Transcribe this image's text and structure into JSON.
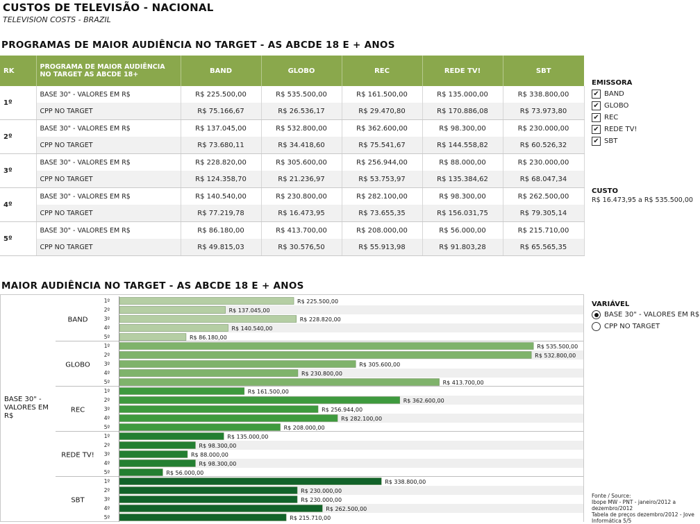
{
  "header": {
    "title": "CUSTOS DE TELEVISÃO - NACIONAL",
    "subtitle": "TELEVISION COSTS - BRAZIL"
  },
  "table_section": {
    "title": "PROGRAMAS DE MAIOR AUDIÊNCIA NO TARGET - AS ABCDE 18 E + ANOS",
    "columns": [
      "RK",
      "PROGRAMA DE MAIOR AUDIÊNCIA NO TARGET AS ABCDE 18+",
      "BAND",
      "GLOBO",
      "REC",
      "REDE TV!",
      "SBT"
    ],
    "rows": [
      {
        "rank": "1º",
        "base_label": "BASE 30\" - VALORES EM R$",
        "base": [
          "R$ 225.500,00",
          "R$ 535.500,00",
          "R$ 161.500,00",
          "R$ 135.000,00",
          "R$ 338.800,00"
        ],
        "cpp_label": "CPP NO TARGET",
        "cpp": [
          "R$ 75.166,67",
          "R$ 26.536,17",
          "R$ 29.470,80",
          "R$ 170.886,08",
          "R$ 73.973,80"
        ]
      },
      {
        "rank": "2º",
        "base_label": "BASE 30\" - VALORES EM R$",
        "base": [
          "R$ 137.045,00",
          "R$ 532.800,00",
          "R$ 362.600,00",
          "R$ 98.300,00",
          "R$ 230.000,00"
        ],
        "cpp_label": "CPP NO TARGET",
        "cpp": [
          "R$ 73.680,11",
          "R$ 34.418,60",
          "R$ 75.541,67",
          "R$ 144.558,82",
          "R$ 60.526,32"
        ]
      },
      {
        "rank": "3º",
        "base_label": "BASE 30\" - VALORES EM R$",
        "base": [
          "R$ 228.820,00",
          "R$ 305.600,00",
          "R$ 256.944,00",
          "R$ 88.000,00",
          "R$ 230.000,00"
        ],
        "cpp_label": "CPP NO TARGET",
        "cpp": [
          "R$ 124.358,70",
          "R$ 21.236,97",
          "R$ 53.753,97",
          "R$ 135.384,62",
          "R$ 68.047,34"
        ]
      },
      {
        "rank": "4º",
        "base_label": "BASE 30\" - VALORES EM R$",
        "base": [
          "R$ 140.540,00",
          "R$ 230.800,00",
          "R$ 282.100,00",
          "R$ 98.300,00",
          "R$ 262.500,00"
        ],
        "cpp_label": "CPP NO TARGET",
        "cpp": [
          "R$ 77.219,78",
          "R$ 16.473,95",
          "R$ 73.655,35",
          "R$ 156.031,75",
          "R$ 79.305,14"
        ]
      },
      {
        "rank": "5º",
        "base_label": "BASE 30\" - VALORES EM R$",
        "base": [
          "R$ 86.180,00",
          "R$ 413.700,00",
          "R$ 208.000,00",
          "R$ 56.000,00",
          "R$ 215.710,00"
        ],
        "cpp_label": "CPP NO TARGET",
        "cpp": [
          "R$ 49.815,03",
          "R$ 30.576,50",
          "R$ 55.913,98",
          "R$ 91.803,28",
          "R$ 65.565,35"
        ]
      }
    ]
  },
  "filters": {
    "emissora_label": "EMISSORA",
    "emissoras": [
      {
        "label": "BAND",
        "checked": true
      },
      {
        "label": "GLOBO",
        "checked": true
      },
      {
        "label": "REC",
        "checked": true
      },
      {
        "label": "REDE TV!",
        "checked": true
      },
      {
        "label": "SBT",
        "checked": true
      }
    ],
    "checkmark": "✔",
    "custo_label": "CUSTO",
    "custo_range": "R$ 16.473,95 a R$ 535.500,00",
    "variavel_label": "VARIÁVEL",
    "variaveis": [
      {
        "label": "BASE 30\" - VALORES EM R$",
        "selected": true
      },
      {
        "label": "CPP NO TARGET",
        "selected": false
      }
    ]
  },
  "chart_section": {
    "title": "MAIOR AUDIÊNCIA NO TARGET - AS ABCDE 18 E + ANOS",
    "measure_label": "BASE 30\" - VALORES EM R$"
  },
  "chart_data": {
    "type": "bar",
    "orientation": "horizontal",
    "title": "MAIOR AUDIÊNCIA NO TARGET - AS ABCDE 18 E + ANOS",
    "ylabel": "BASE 30\" - VALORES EM R$",
    "categories": [
      "1º",
      "2º",
      "3º",
      "4º",
      "5º"
    ],
    "series": [
      {
        "name": "BAND",
        "color": "#b5cea4",
        "values": [
          225500,
          137045,
          228820,
          140540,
          86180
        ],
        "labels": [
          "R$ 225.500,00",
          "R$ 137.045,00",
          "R$ 228.820,00",
          "R$ 140.540,00",
          "R$ 86.180,00"
        ]
      },
      {
        "name": "GLOBO",
        "color": "#7fb36b",
        "values": [
          535500,
          532800,
          305600,
          230800,
          413700
        ],
        "labels": [
          "R$ 535.500,00",
          "R$ 532.800,00",
          "R$ 305.600,00",
          "R$ 230.800,00",
          "R$ 413.700,00"
        ]
      },
      {
        "name": "REC",
        "color": "#3e9a3e",
        "values": [
          161500,
          362600,
          256944,
          282100,
          208000
        ],
        "labels": [
          "R$ 161.500,00",
          "R$ 362.600,00",
          "R$ 256.944,00",
          "R$ 282.100,00",
          "R$ 208.000,00"
        ]
      },
      {
        "name": "REDE TV!",
        "color": "#237f31",
        "values": [
          135000,
          98300,
          88000,
          98300,
          56000
        ],
        "labels": [
          "R$ 135.000,00",
          "R$ 98.300,00",
          "R$ 88.000,00",
          "R$ 98.300,00",
          "R$ 56.000,00"
        ]
      },
      {
        "name": "SBT",
        "color": "#12632a",
        "values": [
          338800,
          230000,
          230000,
          262500,
          215710
        ],
        "labels": [
          "R$ 338.800,00",
          "R$ 230.000,00",
          "R$ 230.000,00",
          "R$ 262.500,00",
          "R$ 215.710,00"
        ]
      }
    ],
    "xlim": [
      0,
      600000
    ],
    "grid": false,
    "legend": "none"
  },
  "source": {
    "lines": [
      "Fonte / Source:",
      "Ibope MW - PNT - janeiro/2012 a",
      "dezembro/2012",
      "Tabela de preços dezembro/2012 - Jove",
      "Informática 5/5"
    ]
  }
}
